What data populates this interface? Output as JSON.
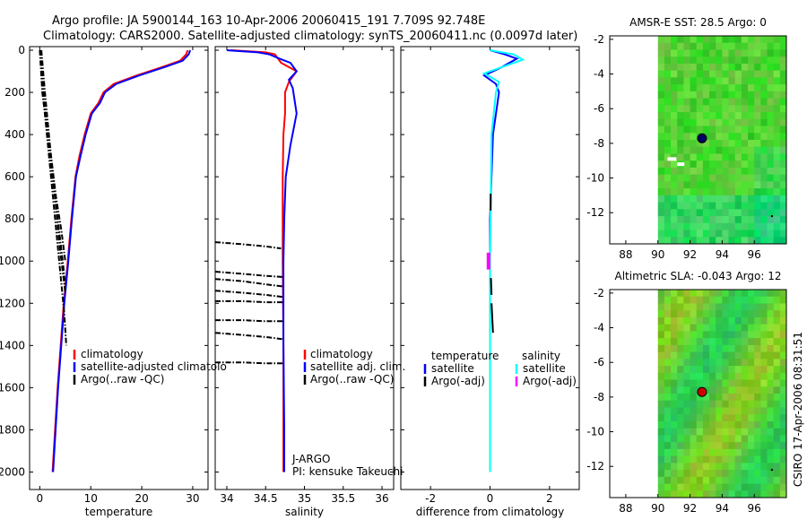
{
  "figure": {
    "title_line1": "Argo profile: JA 5900144_163 10-Apr-2006 20060415_191 7.709S 92.748E",
    "title_line2": "Climatology: CARS2000. Satellite-adjusted climatology: synTS_20060411.nc (0.0097d later)",
    "side_label": "CSIRO 17-Apr-2006 08:31:51",
    "colors": {
      "climatology": "#ff0000",
      "satellite": "#0000ff",
      "argo": "#000000",
      "salinity_satellite": "#00ffff",
      "salinity_argo": "#ff00ff",
      "map_marker_sst": "#000066",
      "map_marker_sla": "#cc0000"
    }
  },
  "chart_data": [
    {
      "id": "temperature",
      "type": "line",
      "xlabel": "temperature",
      "ylabel": "",
      "xlim": [
        -2,
        33
      ],
      "ylim": [
        2100,
        0
      ],
      "xticks": [
        0,
        10,
        20,
        30
      ],
      "yticks": [
        0,
        200,
        400,
        600,
        800,
        1000,
        1200,
        1400,
        1600,
        1800,
        2000
      ],
      "series": [
        {
          "name": "climatology",
          "color": "#ff0000",
          "x": [
            29.0,
            28.7,
            27.5,
            24.0,
            19.0,
            14.5,
            12.5,
            11.5,
            10.0,
            8.8,
            7.8,
            7.0,
            6.2,
            5.5,
            4.7,
            4.1,
            3.5,
            3.0,
            2.5
          ],
          "y": [
            0,
            20,
            50,
            80,
            120,
            160,
            200,
            250,
            300,
            400,
            500,
            600,
            800,
            1000,
            1200,
            1400,
            1600,
            1800,
            2000
          ]
        },
        {
          "name": "satellite-adjusted climatology",
          "color": "#0000ff",
          "x": [
            29.5,
            29.2,
            28.0,
            24.5,
            19.5,
            15.0,
            12.8,
            11.8,
            10.2,
            9.0,
            8.0,
            7.1,
            6.3,
            5.6,
            4.8,
            4.2,
            3.6,
            3.1,
            2.6
          ],
          "y": [
            0,
            20,
            50,
            80,
            120,
            160,
            200,
            250,
            300,
            400,
            500,
            600,
            800,
            1000,
            1200,
            1400,
            1600,
            1800,
            2000
          ]
        },
        {
          "name": "Argo(..raw -QC)",
          "color": "#000000",
          "style": "dashdot",
          "multi": [
            {
              "x": [
                0.0,
                0.5,
                1.5,
                2.5,
                3.5,
                4.5,
                5.0
              ],
              "y": [
                0,
                200,
                400,
                600,
                800,
                1000,
                1120
              ]
            },
            {
              "x": [
                0.2,
                0.8,
                1.8,
                2.8,
                3.8,
                4.8,
                5.2
              ],
              "y": [
                0,
                250,
                500,
                750,
                1000,
                1250,
                1400
              ]
            },
            {
              "x": [
                0.3,
                1.0,
                2.0,
                3.0,
                4.0,
                5.0
              ],
              "y": [
                0,
                200,
                450,
                700,
                950,
                1150
              ]
            },
            {
              "x": [
                0.1,
                0.6,
                1.4,
                2.2,
                3.2,
                4.2,
                5.0
              ],
              "y": [
                0,
                200,
                350,
                500,
                700,
                850,
                1000
              ]
            }
          ]
        }
      ],
      "legend": [
        "climatology",
        "satellite-adjusted climatolo",
        "Argo(..raw -QC)"
      ],
      "legend_position": "lower-right"
    },
    {
      "id": "salinity",
      "type": "line",
      "xlabel": "salinity",
      "ylabel": "",
      "xlim": [
        33.85,
        36.15
      ],
      "ylim": [
        2100,
        0
      ],
      "xticks": [
        34,
        34.5,
        35,
        35.5,
        36
      ],
      "xtick_labels": [
        "34",
        "34.5",
        "35",
        "35.5",
        "36"
      ],
      "series": [
        {
          "name": "climatology",
          "color": "#ff0000",
          "x": [
            34.05,
            34.5,
            34.62,
            34.7,
            34.9,
            34.8,
            34.75,
            34.75,
            34.73,
            34.72,
            34.72,
            34.73,
            34.73
          ],
          "y": [
            0,
            10,
            20,
            60,
            100,
            150,
            200,
            300,
            400,
            600,
            1000,
            1400,
            2000
          ]
        },
        {
          "name": "satellite adj. clim.",
          "color": "#0000ff",
          "x": [
            34.0,
            34.4,
            34.55,
            34.68,
            34.82,
            34.9,
            34.8,
            34.85,
            34.9,
            34.82,
            34.76,
            34.74,
            34.73,
            34.73,
            34.74,
            34.74
          ],
          "y": [
            0,
            10,
            20,
            40,
            60,
            100,
            140,
            180,
            300,
            450,
            600,
            800,
            1000,
            1400,
            1800,
            2000
          ]
        },
        {
          "name": "Argo(..raw -QC)",
          "color": "#000000",
          "style": "dashdot",
          "multi": [
            {
              "x": [
                33.85,
                34.2,
                34.5,
                34.7
              ],
              "y": [
                910,
                920,
                930,
                940
              ]
            },
            {
              "x": [
                33.85,
                34.2,
                34.5,
                34.72
              ],
              "y": [
                1050,
                1060,
                1070,
                1075
              ]
            },
            {
              "x": [
                33.85,
                34.2,
                34.5,
                34.72
              ],
              "y": [
                1085,
                1095,
                1110,
                1120
              ]
            },
            {
              "x": [
                33.85,
                34.2,
                34.5,
                34.72
              ],
              "y": [
                1140,
                1150,
                1160,
                1170
              ]
            },
            {
              "x": [
                33.85,
                34.2,
                34.5,
                34.72
              ],
              "y": [
                1190,
                1190,
                1195,
                1195
              ]
            },
            {
              "x": [
                33.85,
                34.2,
                34.5,
                34.72
              ],
              "y": [
                1280,
                1280,
                1285,
                1285
              ]
            },
            {
              "x": [
                33.85,
                34.2,
                34.5,
                34.72
              ],
              "y": [
                1340,
                1350,
                1360,
                1370
              ]
            },
            {
              "x": [
                33.85,
                34.2,
                34.5,
                34.72
              ],
              "y": [
                1480,
                1480,
                1485,
                1485
              ]
            }
          ]
        }
      ],
      "legend": [
        "climatology",
        "satellite adj. clim.",
        "Argo(..raw -QC)"
      ],
      "legend_position": "lower-right",
      "annotation": [
        "J-ARGO",
        "PI: kensuke Takeuchi"
      ]
    },
    {
      "id": "difference",
      "type": "line",
      "xlabel": "difference from climatology",
      "ylabel": "",
      "xlim": [
        -3,
        3
      ],
      "ylim": [
        2100,
        0
      ],
      "xticks": [
        -2,
        0,
        2
      ],
      "series": [
        {
          "name": "temperature satellite",
          "color": "#0000ff",
          "x": [
            0.0,
            0.5,
            0.9,
            0.4,
            -0.2,
            0.2,
            0.3,
            0.1,
            0.0,
            0.0,
            0.0
          ],
          "y": [
            0,
            20,
            40,
            80,
            120,
            160,
            200,
            400,
            800,
            1400,
            2000
          ]
        },
        {
          "name": "salinity satellite",
          "color": "#00ffff",
          "x": [
            0.0,
            0.8,
            1.1,
            0.4,
            -0.2,
            0.3,
            0.2,
            0.05,
            0.0,
            0.0
          ],
          "y": [
            0,
            20,
            45,
            80,
            110,
            150,
            200,
            400,
            1000,
            2000
          ]
        },
        {
          "name": "temperature Argo(-adj)",
          "color": "#000000",
          "multi": [
            {
              "x": [
                0.02,
                0.02
              ],
              "y": [
                680,
                760
              ]
            },
            {
              "x": [
                0.03,
                0.05
              ],
              "y": [
                1080,
                1160
              ]
            },
            {
              "x": [
                0.05,
                0.1
              ],
              "y": [
                1200,
                1340
              ]
            }
          ]
        },
        {
          "name": "salinity Argo(-adj)",
          "color": "#ff00ff",
          "multi": [
            {
              "x": [
                -0.05,
                -0.05
              ],
              "y": [
                960,
                1040
              ]
            }
          ]
        }
      ],
      "legend_headers": [
        "temperature",
        "salinity"
      ],
      "legend": [
        "satellite",
        "Argo(-adj)",
        "satellite",
        "Argo(-adj)"
      ],
      "legend_position": "lower-center"
    },
    {
      "id": "sst_map",
      "type": "heatmap",
      "title": "AMSR-E SST: 28.5  Argo: 0",
      "xlim": [
        87,
        98
      ],
      "ylim": [
        -13.8,
        -1.8
      ],
      "xticks": [
        88,
        90,
        92,
        94,
        96
      ],
      "yticks": [
        -2,
        -4,
        -6,
        -8,
        -10,
        -12
      ],
      "data_extent_x": [
        90,
        98
      ],
      "marker": {
        "x": 92.748,
        "y": -7.709
      }
    },
    {
      "id": "sla_map",
      "type": "heatmap",
      "title": "Altimetric SLA: -0.043  Argo: 12",
      "xlim": [
        87,
        98
      ],
      "ylim": [
        -13.8,
        -1.8
      ],
      "xticks": [
        88,
        90,
        92,
        94,
        96
      ],
      "yticks": [
        -2,
        -4,
        -6,
        -8,
        -10,
        -12
      ],
      "data_extent_x": [
        90,
        98
      ],
      "marker": {
        "x": 92.748,
        "y": -7.709
      }
    }
  ]
}
